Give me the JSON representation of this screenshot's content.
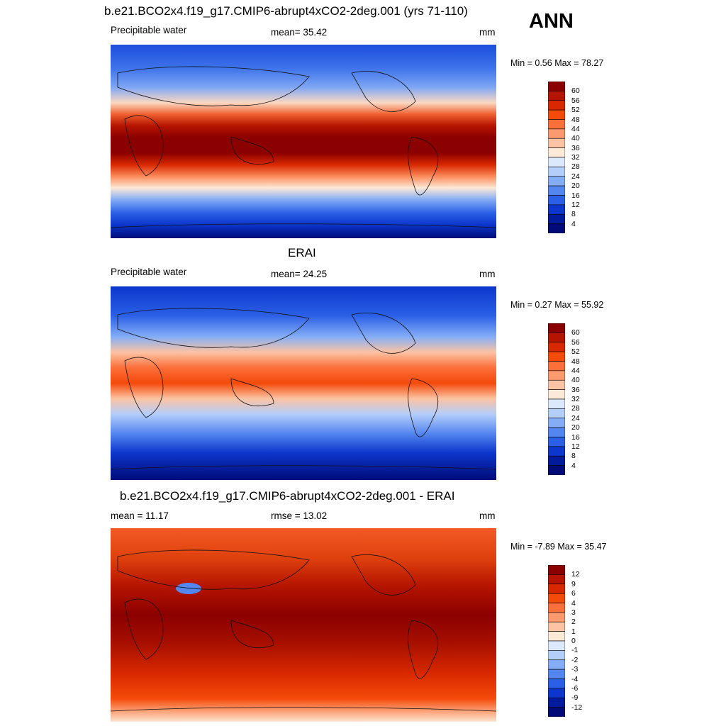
{
  "season": "ANN",
  "panels": [
    {
      "title": "b.e21.BCO2x4.f19_g17.CMIP6-abrupt4xCO2-2deg.001 (yrs 71-110)",
      "left": "Precipitable water",
      "center": "mean=  35.42",
      "units": "mm",
      "minmax": "Min =   0.56 Max =  78.27",
      "colorbar": {
        "labels": [
          "60",
          "56",
          "52",
          "48",
          "44",
          "40",
          "36",
          "32",
          "28",
          "24",
          "20",
          "16",
          "12",
          "8",
          "4"
        ],
        "colors": [
          "#8b0000",
          "#b51400",
          "#d82800",
          "#f44a0a",
          "#fb6f3a",
          "#fb9a6e",
          "#fcc3a4",
          "#fde9d8",
          "#dce8fb",
          "#b4cefa",
          "#84adf6",
          "#5486ef",
          "#2a5fe6",
          "#0c36cc",
          "#021a9c",
          "#000b78"
        ]
      }
    },
    {
      "title": "ERAI",
      "left": "Precipitable water",
      "center": "mean=  24.25",
      "units": "mm",
      "minmax": "Min =   0.27 Max =  55.92",
      "colorbar": {
        "labels": [
          "60",
          "56",
          "52",
          "48",
          "44",
          "40",
          "36",
          "32",
          "28",
          "24",
          "20",
          "16",
          "12",
          "8",
          "4"
        ],
        "colors": [
          "#8b0000",
          "#b51400",
          "#d82800",
          "#f44a0a",
          "#fb6f3a",
          "#fb9a6e",
          "#fcc3a4",
          "#fde9d8",
          "#dce8fb",
          "#b4cefa",
          "#84adf6",
          "#5486ef",
          "#2a5fe6",
          "#0c36cc",
          "#021a9c",
          "#000b78"
        ]
      }
    },
    {
      "title": "b.e21.BCO2x4.f19_g17.CMIP6-abrupt4xCO2-2deg.001 - ERAI",
      "left": "mean =  11.17",
      "center": "rmse =  13.02",
      "units": "mm",
      "minmax": "Min =  -7.89 Max =  35.47",
      "colorbar": {
        "labels": [
          "12",
          "9",
          "6",
          "4",
          "3",
          "2",
          "1",
          "0",
          "-1",
          "-2",
          "-3",
          "-4",
          "-6",
          "-9",
          "-12"
        ],
        "colors": [
          "#8b0000",
          "#b51400",
          "#d82800",
          "#f44a0a",
          "#fb6f3a",
          "#fb9a6e",
          "#fcc3a4",
          "#fde9d8",
          "#dce8fb",
          "#b4cefa",
          "#84adf6",
          "#5486ef",
          "#2a5fe6",
          "#0c36cc",
          "#021a9c",
          "#000b78"
        ]
      }
    }
  ]
}
